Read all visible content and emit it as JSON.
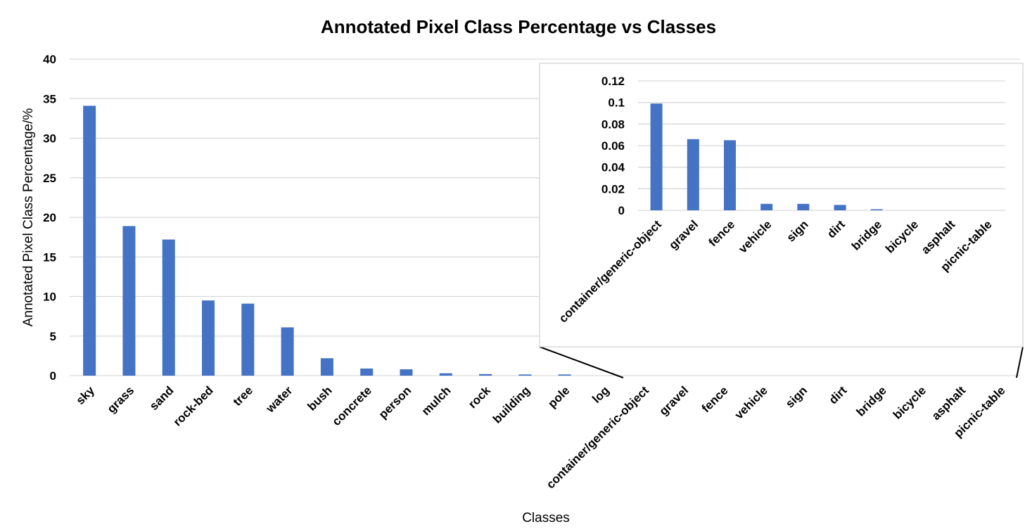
{
  "chart_data": [
    {
      "type": "bar",
      "title": "Annotated Pixel Class Percentage vs Classes",
      "xlabel": "Classes",
      "ylabel": "Annotated Pixel Class Percentage/%",
      "ylim": [
        0,
        40
      ],
      "yticks": [
        0,
        5,
        10,
        15,
        20,
        25,
        30,
        35,
        40
      ],
      "grid": true,
      "bar_color": "#4472C4",
      "categories": [
        "sky",
        "grass",
        "sand",
        "rock-bed",
        "tree",
        "water",
        "bush",
        "concrete",
        "person",
        "mulch",
        "rock",
        "building",
        "pole",
        "log",
        "container/generic-object",
        "gravel",
        "fence",
        "vehicle",
        "sign",
        "dirt",
        "bridge",
        "bicycle",
        "asphalt",
        "picnic-table"
      ],
      "values": [
        34.1,
        18.9,
        17.2,
        9.5,
        9.1,
        6.1,
        2.2,
        0.9,
        0.8,
        0.3,
        0.2,
        0.15,
        0.15,
        0.0,
        0.099,
        0.066,
        0.065,
        0.006,
        0.006,
        0.005,
        0.001,
        0.0,
        0.0,
        0.0
      ]
    },
    {
      "type": "bar",
      "title": "",
      "ylim": [
        0,
        0.12
      ],
      "yticks": [
        "0",
        "0.02",
        "0.04",
        "0.06",
        "0.08",
        "0.1",
        "0.12"
      ],
      "grid": true,
      "bar_color": "#4472C4",
      "categories": [
        "container/generic-object",
        "gravel",
        "fence",
        "vehicle",
        "sign",
        "dirt",
        "bridge",
        "bicycle",
        "asphalt",
        "picnic-table"
      ],
      "values": [
        0.099,
        0.066,
        0.065,
        0.006,
        0.006,
        0.005,
        0.001,
        0.0,
        0.0,
        0.0
      ]
    }
  ]
}
